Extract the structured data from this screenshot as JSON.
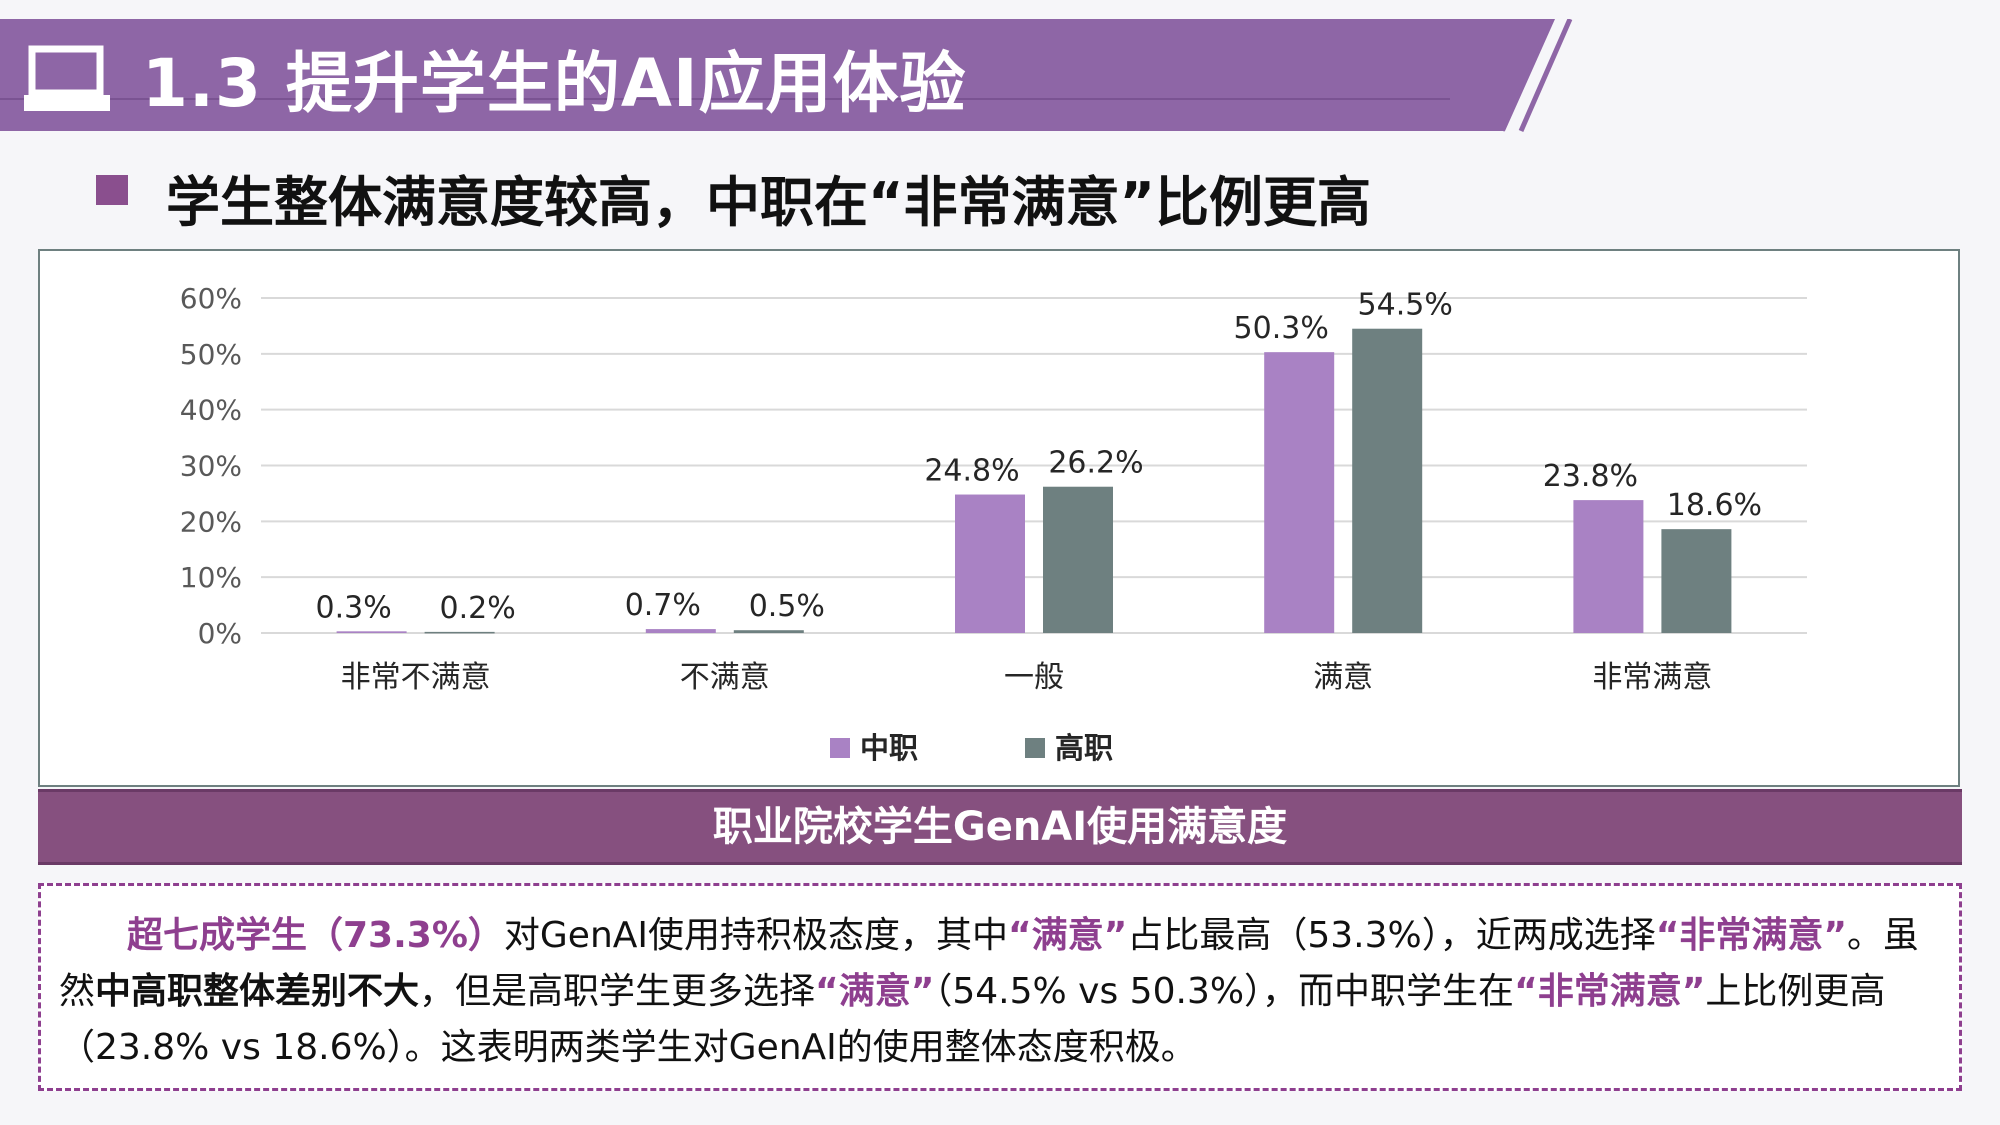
{
  "header": {
    "title": "1.3 提升学生的AI应用体验",
    "icon": "laptop-icon",
    "color": "#8e66a6"
  },
  "subtitle": "学生整体满意度较高，中职在“非常满意”比例更高",
  "chart_caption": "职业院校学生GenAI使用满意度",
  "chart_data": {
    "type": "bar",
    "categories": [
      "非常不满意",
      "不满意",
      "一般",
      "满意",
      "非常满意"
    ],
    "series": [
      {
        "name": "中职",
        "values": [
          0.3,
          0.7,
          24.8,
          50.3,
          23.8
        ],
        "labels": [
          "0.3%",
          "0.7%",
          "24.8%",
          "50.3%",
          "23.8%"
        ],
        "color": "#a982c4"
      },
      {
        "name": "高职",
        "values": [
          0.2,
          0.5,
          26.2,
          54.5,
          18.6
        ],
        "labels": [
          "0.2%",
          "0.5%",
          "26.2%",
          "54.5%",
          "18.6%"
        ],
        "color": "#6e8080"
      }
    ],
    "yticks": [
      "0%",
      "10%",
      "20%",
      "30%",
      "40%",
      "50%",
      "60%"
    ],
    "ylim": [
      0,
      60
    ],
    "grid": true,
    "legend": "bottom"
  },
  "summary": {
    "p1": "超七成学生（73.3%）",
    "p2": "对GenAI使用持积极态度，其中",
    "p3": "“满意”",
    "p4": "占比最高（53.3%），近两成选择",
    "p5": "“非常满意”",
    "p6": "。虽然",
    "p7": "中高职整体差别不大",
    "p8": "，但是高职学生更多选择",
    "p9": "“满意”",
    "p10": "（54.5% vs 50.3%），而中职学生在",
    "p11": "“非常满意”",
    "p12": "上比例更高（23.8% vs 18.6%）。这表明两类学生对GenAI的使用整体态度积极。"
  }
}
